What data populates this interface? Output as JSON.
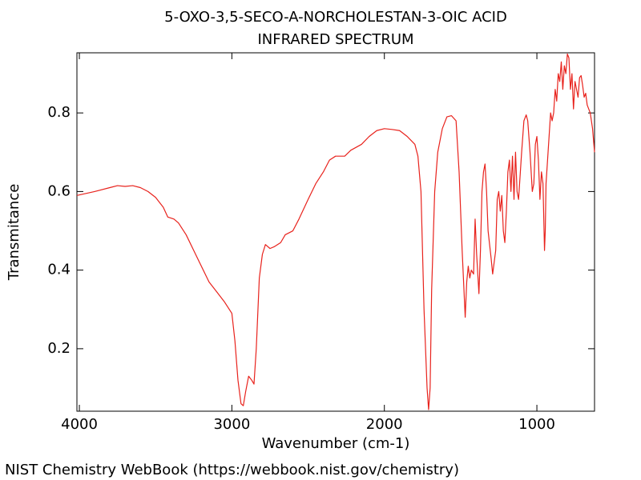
{
  "chart_data": {
    "type": "line",
    "title": "5-OXO-3,5-SECO-A-NORCHOLESTAN-3-OIC ACID",
    "subtitle": "INFRARED SPECTRUM",
    "xlabel": "Wavenumber (cm-1)",
    "ylabel": "Transmitance",
    "source": "NIST Chemistry WebBook (https://webbook.nist.gov/chemistry)",
    "xlim": [
      4016,
      622
    ],
    "ylim": [
      0.041,
      0.953
    ],
    "xticks": [
      4000,
      3000,
      2000,
      1000
    ],
    "yticks": [
      0.2,
      0.4,
      0.6,
      0.8
    ],
    "x": [
      4016,
      3900,
      3800,
      3750,
      3700,
      3650,
      3600,
      3550,
      3500,
      3450,
      3420,
      3380,
      3350,
      3300,
      3250,
      3200,
      3150,
      3100,
      3050,
      3000,
      2980,
      2960,
      2940,
      2925,
      2910,
      2890,
      2870,
      2855,
      2840,
      2820,
      2800,
      2780,
      2750,
      2720,
      2680,
      2650,
      2600,
      2560,
      2500,
      2450,
      2400,
      2360,
      2320,
      2260,
      2220,
      2150,
      2100,
      2050,
      2000,
      1950,
      1900,
      1850,
      1800,
      1780,
      1760,
      1740,
      1720,
      1710,
      1700,
      1690,
      1670,
      1650,
      1620,
      1590,
      1560,
      1530,
      1510,
      1490,
      1470,
      1460,
      1450,
      1440,
      1430,
      1415,
      1405,
      1395,
      1380,
      1370,
      1360,
      1350,
      1340,
      1330,
      1320,
      1300,
      1290,
      1270,
      1260,
      1250,
      1240,
      1230,
      1220,
      1210,
      1200,
      1190,
      1180,
      1170,
      1160,
      1150,
      1140,
      1130,
      1120,
      1100,
      1085,
      1070,
      1060,
      1045,
      1030,
      1020,
      1010,
      1000,
      990,
      980,
      970,
      960,
      950,
      945,
      940,
      930,
      920,
      910,
      900,
      890,
      880,
      870,
      860,
      850,
      840,
      830,
      820,
      810,
      800,
      790,
      780,
      770,
      760,
      750,
      740,
      730,
      720,
      710,
      700,
      690,
      680,
      670,
      650,
      635,
      622
    ],
    "series": [
      {
        "name": "Transmitance",
        "color": "#e8221c",
        "values": [
          0.59,
          0.6,
          0.61,
          0.615,
          0.613,
          0.615,
          0.61,
          0.6,
          0.585,
          0.56,
          0.535,
          0.53,
          0.52,
          0.49,
          0.45,
          0.41,
          0.37,
          0.345,
          0.32,
          0.29,
          0.22,
          0.12,
          0.06,
          0.055,
          0.09,
          0.13,
          0.12,
          0.11,
          0.2,
          0.38,
          0.44,
          0.465,
          0.455,
          0.46,
          0.47,
          0.49,
          0.5,
          0.53,
          0.58,
          0.62,
          0.65,
          0.68,
          0.69,
          0.69,
          0.705,
          0.72,
          0.74,
          0.755,
          0.76,
          0.758,
          0.755,
          0.74,
          0.72,
          0.69,
          0.6,
          0.3,
          0.1,
          0.045,
          0.1,
          0.35,
          0.6,
          0.7,
          0.76,
          0.79,
          0.793,
          0.78,
          0.65,
          0.45,
          0.28,
          0.37,
          0.41,
          0.38,
          0.4,
          0.39,
          0.53,
          0.44,
          0.34,
          0.45,
          0.6,
          0.65,
          0.67,
          0.6,
          0.5,
          0.43,
          0.39,
          0.45,
          0.58,
          0.6,
          0.55,
          0.59,
          0.5,
          0.47,
          0.55,
          0.65,
          0.68,
          0.6,
          0.69,
          0.58,
          0.7,
          0.6,
          0.58,
          0.7,
          0.78,
          0.795,
          0.78,
          0.7,
          0.6,
          0.62,
          0.72,
          0.74,
          0.68,
          0.58,
          0.65,
          0.62,
          0.45,
          0.5,
          0.62,
          0.68,
          0.74,
          0.8,
          0.78,
          0.8,
          0.86,
          0.83,
          0.9,
          0.88,
          0.93,
          0.86,
          0.92,
          0.9,
          0.95,
          0.94,
          0.86,
          0.9,
          0.81,
          0.88,
          0.86,
          0.84,
          0.89,
          0.895,
          0.87,
          0.84,
          0.85,
          0.82,
          0.8,
          0.76,
          0.7
        ]
      }
    ]
  }
}
